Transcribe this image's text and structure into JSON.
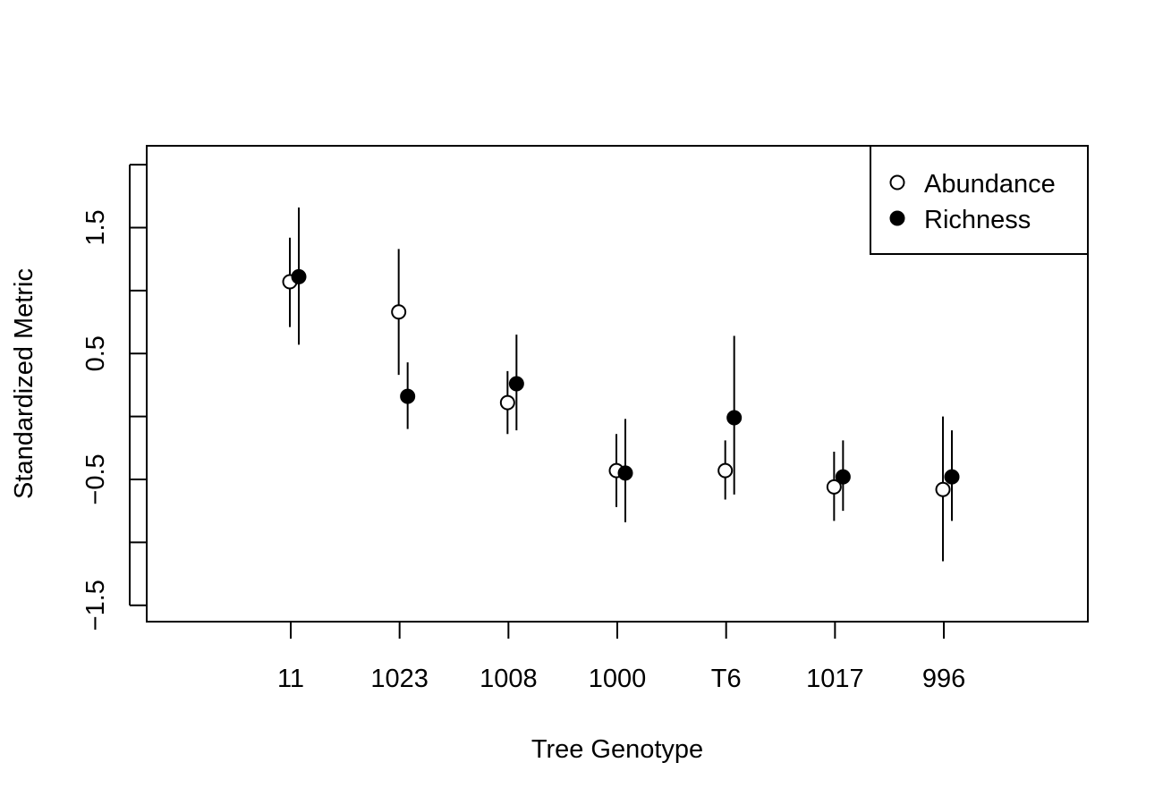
{
  "chart_data": {
    "type": "scatter",
    "xlabel": "Tree Genotype",
    "ylabel": "Standardized Metric",
    "categories": [
      "11",
      "1023",
      "1008",
      "1000",
      "T6",
      "1017",
      "996"
    ],
    "ylim": [
      -1.63,
      2.15
    ],
    "yticks": [
      -1.5,
      -1.0,
      -0.5,
      0.0,
      0.5,
      1.0,
      1.5,
      2.0
    ],
    "ytick_labels": [
      "−1.5",
      "",
      "−0.5",
      "",
      "0.5",
      "",
      "1.5",
      ""
    ],
    "legend_position": "top-right",
    "grid": false,
    "series": [
      {
        "name": "Abundance",
        "marker": "open-circle",
        "values": [
          1.07,
          0.83,
          0.11,
          -0.43,
          -0.43,
          -0.56,
          -0.58
        ],
        "err_low": [
          0.71,
          0.33,
          -0.14,
          -0.72,
          -0.66,
          -0.83,
          -1.15
        ],
        "err_high": [
          1.42,
          1.33,
          0.36,
          -0.14,
          -0.19,
          -0.28,
          0.0
        ]
      },
      {
        "name": "Richness",
        "marker": "filled-circle",
        "values": [
          1.11,
          0.16,
          0.26,
          -0.45,
          -0.01,
          -0.48,
          -0.48
        ],
        "err_low": [
          0.57,
          -0.1,
          -0.11,
          -0.84,
          -0.62,
          -0.75,
          -0.83
        ],
        "err_high": [
          1.66,
          0.43,
          0.65,
          -0.02,
          0.64,
          -0.19,
          -0.11
        ]
      }
    ]
  }
}
